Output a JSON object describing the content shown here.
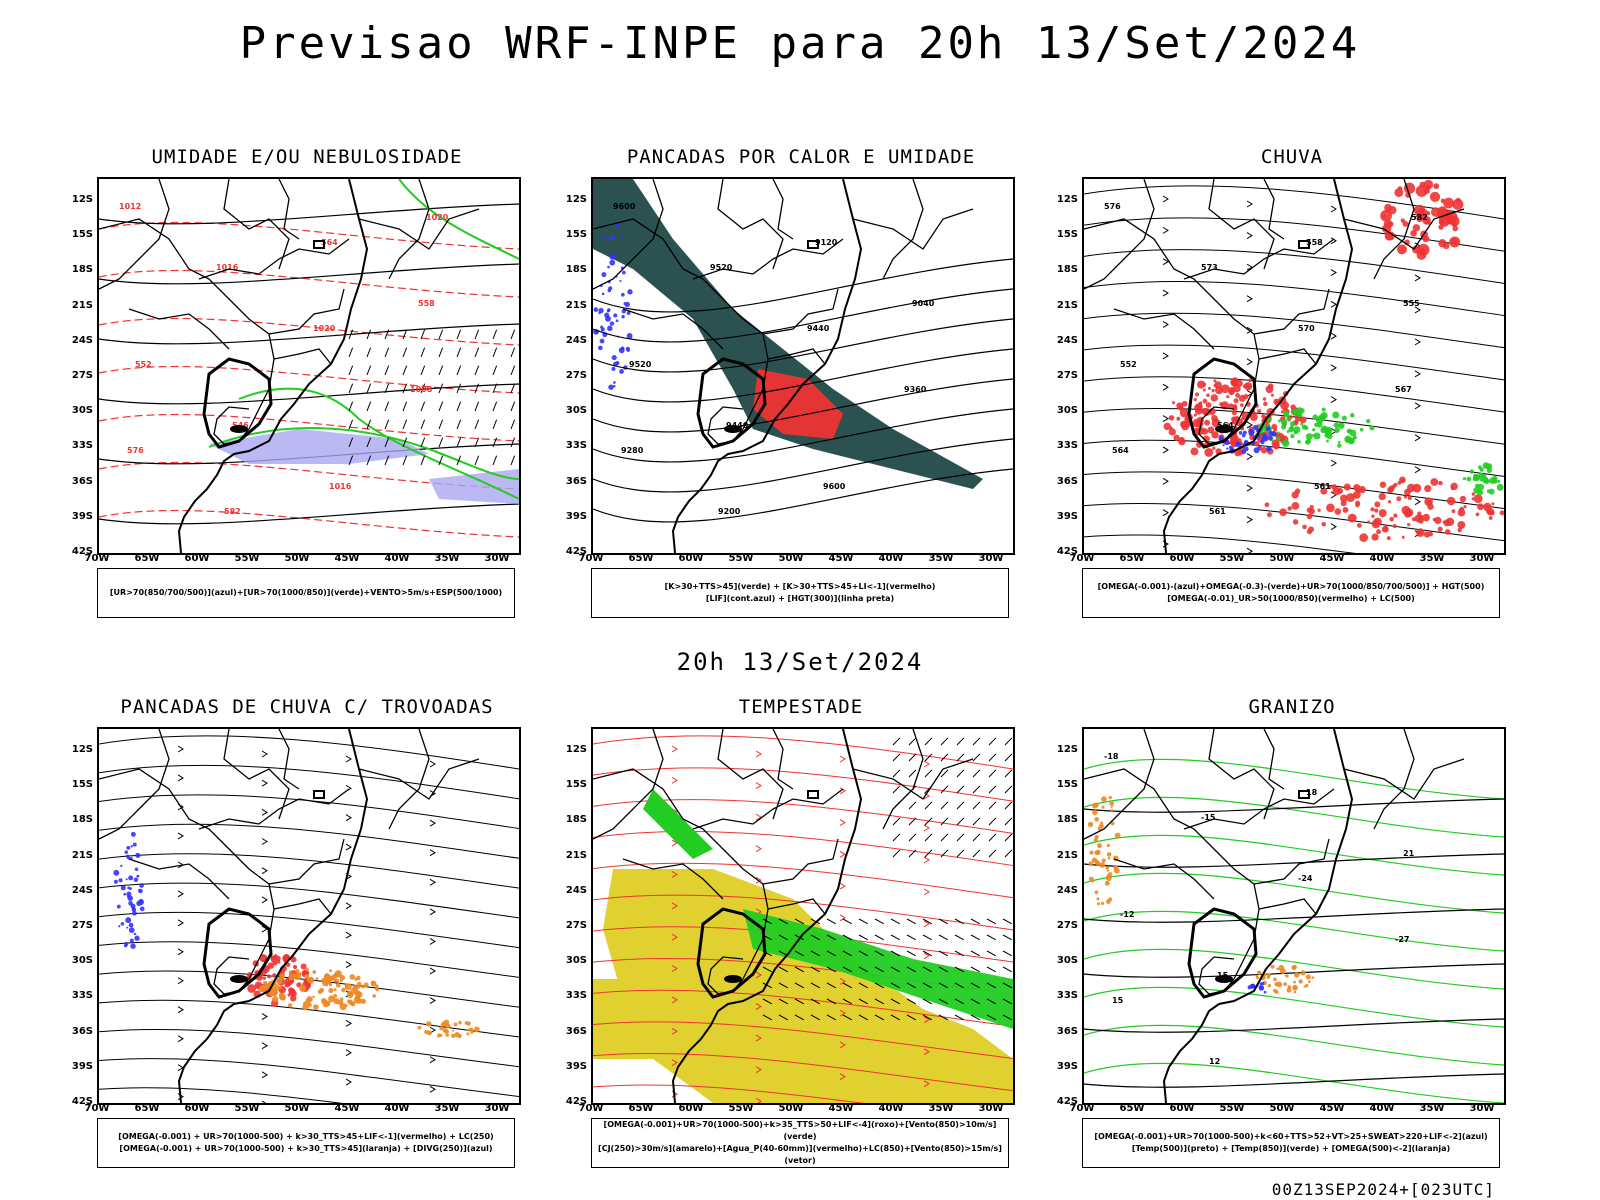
{
  "title": "Previsao WRF-INPE  para 20h 13/Set/2024",
  "mid_title": "20h 13/Set/2024",
  "footer": "00Z13SEP2024+[023UTC]",
  "lat_labels": [
    "12S",
    "15S",
    "18S",
    "21S",
    "24S",
    "27S",
    "30S",
    "33S",
    "36S",
    "39S",
    "42S"
  ],
  "lon_labels": [
    "70W",
    "65W",
    "60W",
    "55W",
    "50W",
    "45W",
    "40W",
    "35W",
    "30W"
  ],
  "panels": [
    {
      "title": "UMIDADE E/OU NEBULOSIDADE",
      "legend": [
        "[UR>70(850/700/500)](azul)+[UR>70(1000/850)](verde)+VENTO>5m/s+ESP(500/1000)"
      ],
      "labels": [
        "1012",
        "1016",
        "1020",
        "1008",
        "576",
        "582",
        "564",
        "558",
        "552",
        "546",
        "1016",
        "1020"
      ]
    },
    {
      "title": "PANCADAS POR CALOR E UMIDADE",
      "legend": [
        "[K>30+TTS>45](verde) + [K>30+TTS>45+LI<-1](vermelho)",
        "[LIF](cont.azul) + [HGT(300)](linha preta)"
      ],
      "labels": [
        "9600",
        "9520",
        "9440",
        "9360",
        "9280",
        "9200",
        "9120",
        "9040",
        "9520",
        "9440",
        "9600"
      ]
    },
    {
      "title": "CHUVA",
      "legend": [
        "[OMEGA(-0.001)-(azul)+OMEGA(-0.3)-(verde)+UR>70(1000/850/700/500)] + HGT(500)",
        "[OMEGA(-0.01)_UR>50(1000/850)(vermelho) + LC(500)"
      ],
      "labels": [
        "576",
        "573",
        "570",
        "567",
        "564",
        "561",
        "558",
        "555",
        "552",
        "564",
        "561",
        "582"
      ]
    },
    {
      "title": "PANCADAS DE CHUVA C/ TROVOADAS",
      "legend": [
        "[OMEGA(-0.001) + UR>70(1000-500) + k>30_TTS>45+LIF<-1](vermelho) + LC(250)",
        "[OMEGA(-0.001) + UR>70(1000-500) + k>30_TTS>45](laranja) + [DIVG(250)](azul)"
      ],
      "labels": []
    },
    {
      "title": "TEMPESTADE",
      "legend": [
        "[OMEGA(-0.001)+UR>70(1000-500)+k>35_TTS>50+LIF<-4](roxo)+[Vento(850)>10m/s](verde)",
        "[CJ(250)>30m/s](amarelo)+[Agua_P(40-60mm)](vermelho)+LC(850)+[Vento(850)>15m/s](vetor)"
      ],
      "labels": []
    },
    {
      "title": "GRANIZO",
      "legend": [
        "[OMEGA(-0.001)+UR>70(1000-500)+k<60+TTS>52+VT>25+SWEAT>220+LIF<-2](azul)",
        "[Temp(500)](preto) + [Temp(850)](verde) + [OMEGA(500)<-2](laranja)"
      ],
      "labels": [
        "-18",
        "-15",
        "-24",
        "-27",
        "15",
        "12",
        "18",
        "21",
        "-12",
        "15"
      ]
    }
  ],
  "colors": {
    "blue": "#3333ff",
    "green": "#22cc22",
    "red": "#ee3333",
    "orange": "#ee8822",
    "yellow": "#e0d030",
    "teal": "#204848",
    "lavender": "#aaa8f0"
  }
}
